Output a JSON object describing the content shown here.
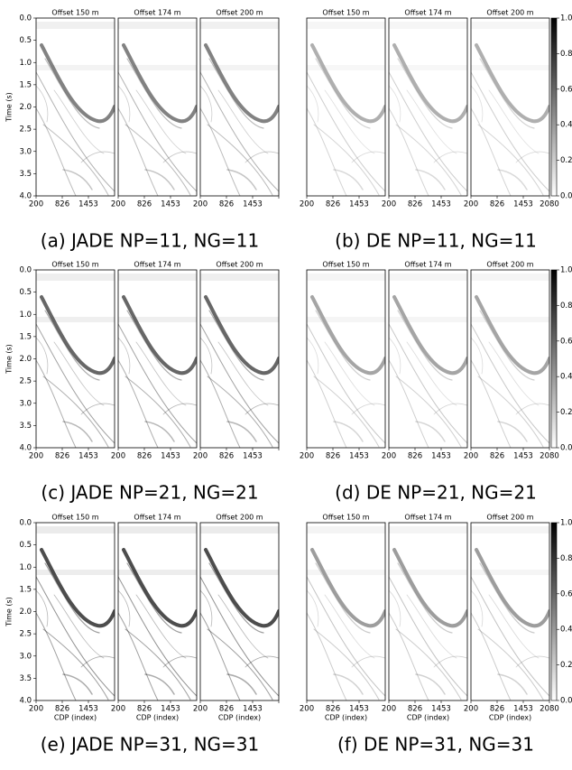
{
  "figures": [
    {
      "caption": "(a) JADE NP=11, NG=11"
    },
    {
      "caption": "(b) DE NP=11, NG=11"
    },
    {
      "caption": "(c) JADE NP=21, NG=21"
    },
    {
      "caption": "(d) DE NP=21, NG=21"
    },
    {
      "caption": "(e) JADE NP=31, NG=31"
    },
    {
      "caption": "(f) DE NP=31, NG=31"
    }
  ],
  "panel_titles": [
    "Offset 150 m",
    "Offset 174 m",
    "Offset 200 m"
  ],
  "ylabel": "Time (s)",
  "xlabel": "CDP (index)",
  "yticks": [
    "0.0",
    "0.5",
    "1.0",
    "1.5",
    "2.0",
    "2.5",
    "3.0",
    "3.5",
    "4.0"
  ],
  "xticks": [
    "200",
    "826",
    "1453"
  ],
  "xtick_last": "2080",
  "colorbar_ticks": [
    "0.0",
    "0.2",
    "0.4",
    "0.6",
    "0.8",
    "1.0"
  ]
}
